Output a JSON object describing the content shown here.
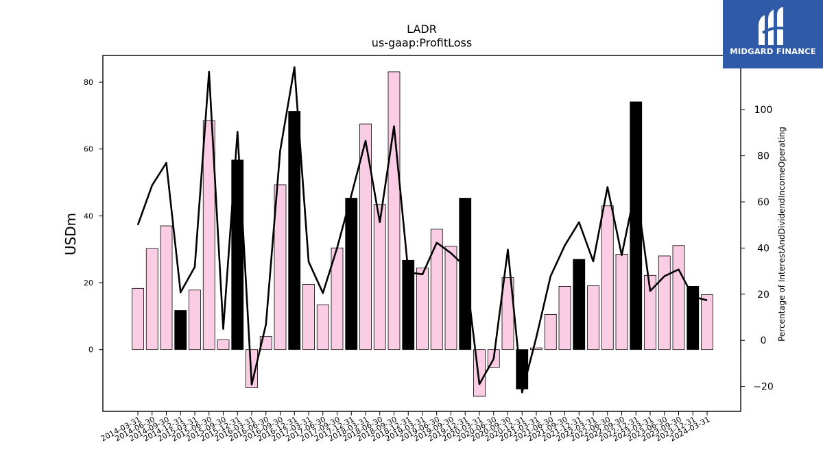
{
  "brand": {
    "name": "MIDGARD FINANCE",
    "color": "#2e5aa8"
  },
  "chart_data": {
    "type": "bar",
    "title": "LADR",
    "subtitle": "us-gaap:ProfitLoss",
    "ylabel": "USDm",
    "y2label": "Percentage of InterestAndDividendIncomeOperating",
    "ylim": [
      -18.5,
      88
    ],
    "y2lim": [
      -30.8,
      123.5
    ],
    "yticks": [
      0,
      20,
      40,
      60,
      80
    ],
    "y2ticks": [
      -20,
      0,
      20,
      40,
      60,
      80,
      100
    ],
    "categories": [
      "2014-03-31",
      "2014-06-30",
      "2014-09-30",
      "2014-12-31",
      "2015-03-31",
      "2015-06-30",
      "2015-09-30",
      "2015-12-31",
      "2016-03-31",
      "2016-06-30",
      "2016-09-30",
      "2016-12-31",
      "2017-03-31",
      "2017-06-30",
      "2017-09-30",
      "2017-12-31",
      "2018-03-31",
      "2018-06-30",
      "2018-09-30",
      "2018-12-31",
      "2019-03-31",
      "2019-06-30",
      "2019-09-30",
      "2019-12-31",
      "2020-03-31",
      "2020-06-30",
      "2020-09-30",
      "2020-12-31",
      "2021-03-31",
      "2021-06-30",
      "2021-09-30",
      "2021-12-31",
      "2022-03-31",
      "2022-06-30",
      "2022-09-30",
      "2022-12-31",
      "2023-03-31",
      "2023-06-30",
      "2023-09-30",
      "2023-12-31",
      "2024-03-31"
    ],
    "series": [
      {
        "values": [
          18.3,
          30.2,
          37.0,
          11.7,
          17.8,
          68.5,
          2.9,
          56.7,
          -11.4,
          3.9,
          49.3,
          71.3,
          19.5,
          13.4,
          30.4,
          45.3,
          67.5,
          43.4,
          83.1,
          26.7,
          24.4,
          36.0,
          30.9,
          45.3,
          -14.0,
          -5.3,
          21.5,
          -11.8,
          0.5,
          10.5,
          18.9,
          27.0,
          19.1,
          43.0,
          28.5,
          74.1,
          22.2,
          28.0,
          31.1,
          18.9,
          16.4
        ],
        "highlight": [
          false,
          false,
          false,
          true,
          false,
          false,
          false,
          true,
          false,
          false,
          false,
          true,
          false,
          false,
          false,
          true,
          false,
          false,
          false,
          true,
          false,
          false,
          false,
          true,
          false,
          false,
          false,
          true,
          false,
          false,
          false,
          true,
          false,
          false,
          false,
          true,
          false,
          false,
          false,
          true,
          false
        ]
      },
      {
        "axis": "right",
        "type": "line",
        "values": [
          50.0,
          67.2,
          76.9,
          20.8,
          31.8,
          116.4,
          4.9,
          90.4,
          -19.2,
          6.9,
          82.2,
          118.4,
          34.1,
          20.5,
          40.0,
          62.9,
          86.5,
          51.2,
          92.8,
          29.5,
          28.6,
          42.3,
          37.8,
          31.9,
          -19.0,
          -8.0,
          39.3,
          -22.6,
          1.3,
          27.8,
          41.1,
          51.2,
          34.2,
          66.4,
          36.9,
          66.7,
          21.4,
          27.8,
          30.7,
          19.0,
          17.3
        ]
      }
    ],
    "colors": {
      "bar": "#fbcde5",
      "bar_highlight": "#000000",
      "line": "#000000"
    },
    "grid": false,
    "legend": "none"
  }
}
